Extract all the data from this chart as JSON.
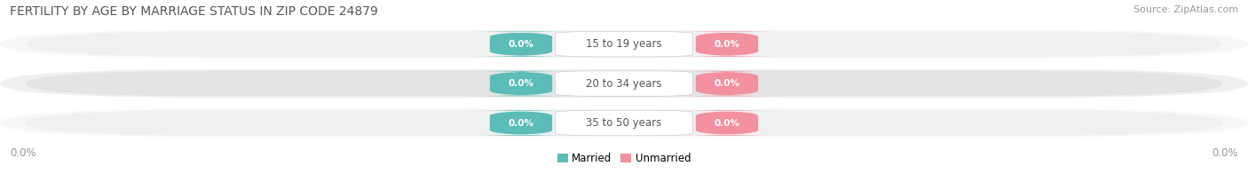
{
  "title": "FERTILITY BY AGE BY MARRIAGE STATUS IN ZIP CODE 24879",
  "source": "Source: ZipAtlas.com",
  "categories": [
    "15 to 19 years",
    "20 to 34 years",
    "35 to 50 years"
  ],
  "married_values": [
    0.0,
    0.0,
    0.0
  ],
  "unmarried_values": [
    0.0,
    0.0,
    0.0
  ],
  "married_color": "#5bbcb8",
  "unmarried_color": "#f290a0",
  "bar_bg_light": "#f0f0f0",
  "bar_bg_dark": "#e4e4e4",
  "row_bg_light": "#f8f8f8",
  "row_bg_dark": "#efefef",
  "title_fontsize": 10,
  "source_fontsize": 8,
  "cat_label_fontsize": 8.5,
  "value_fontsize": 7.5,
  "legend_fontsize": 8.5,
  "axis_label_value": "0.0%",
  "background_color": "#ffffff",
  "text_dark": "#555555",
  "text_light": "#999999"
}
